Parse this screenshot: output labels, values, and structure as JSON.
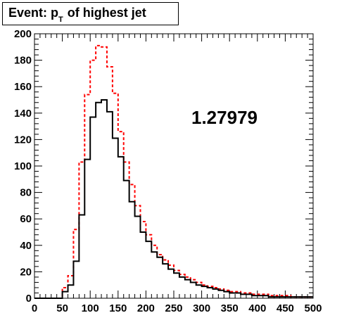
{
  "title": {
    "prefix": "Event: p",
    "subscript": "T",
    "suffix": " of highest jet"
  },
  "annotation": "1.27979",
  "chart_data": {
    "type": "histogram",
    "title": "Event: p_T of highest jet",
    "xlim": [
      0,
      500
    ],
    "ylim": [
      0,
      200
    ],
    "x_ticks": [
      0,
      50,
      100,
      150,
      200,
      250,
      300,
      350,
      400,
      450,
      500
    ],
    "y_ticks": [
      0,
      20,
      40,
      60,
      80,
      100,
      120,
      140,
      160,
      180,
      200
    ],
    "bin_width": 10,
    "grid": false,
    "series": [
      {
        "style": "solid",
        "color": "#000000",
        "values": [
          0,
          0,
          0,
          0,
          0,
          5,
          10,
          28,
          63,
          105,
          137,
          148,
          150,
          141,
          121,
          107,
          89,
          73,
          62,
          50,
          43,
          35,
          31,
          26,
          22,
          19,
          16,
          14,
          12,
          10,
          9,
          8,
          7,
          6,
          5,
          4,
          4,
          3,
          3,
          2,
          2,
          2,
          1,
          1,
          1,
          1,
          1,
          1,
          1,
          1
        ]
      },
      {
        "style": "dashed",
        "color": "#ff0000",
        "values": [
          0,
          0,
          0,
          0,
          0,
          8,
          17,
          52,
          103,
          154,
          180,
          191,
          190,
          175,
          155,
          126,
          103,
          86,
          70,
          58,
          48,
          40,
          33,
          29,
          25,
          21,
          18,
          16,
          14,
          12,
          10,
          9,
          8,
          7,
          6,
          5,
          5,
          4,
          4,
          3,
          3,
          3,
          2,
          2,
          2,
          2,
          1,
          1,
          1,
          1
        ]
      }
    ]
  }
}
